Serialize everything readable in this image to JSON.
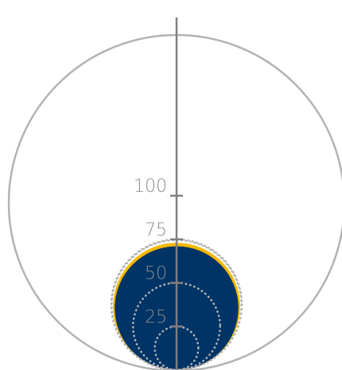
{
  "chart_data": {
    "type": "radial-area",
    "title": "",
    "xlabel": "",
    "ylabel": "",
    "axis": {
      "range": [
        0,
        100
      ],
      "ticks": [
        25,
        50,
        75,
        100
      ],
      "tick_labels": [
        "25",
        "50",
        "75",
        "100"
      ]
    },
    "reference_circles": [
      25,
      50,
      75
    ],
    "series": [
      {
        "role": "outline",
        "value": 73,
        "color": "#f5b800"
      },
      {
        "role": "fill",
        "value": 71,
        "color": "#003366"
      }
    ],
    "colors": {
      "outer_ring": "#b3b3b3",
      "axis": "#7f7f7f",
      "dotted_grid": "#b3b3b3",
      "tick_label": "#8c8c8c"
    }
  }
}
